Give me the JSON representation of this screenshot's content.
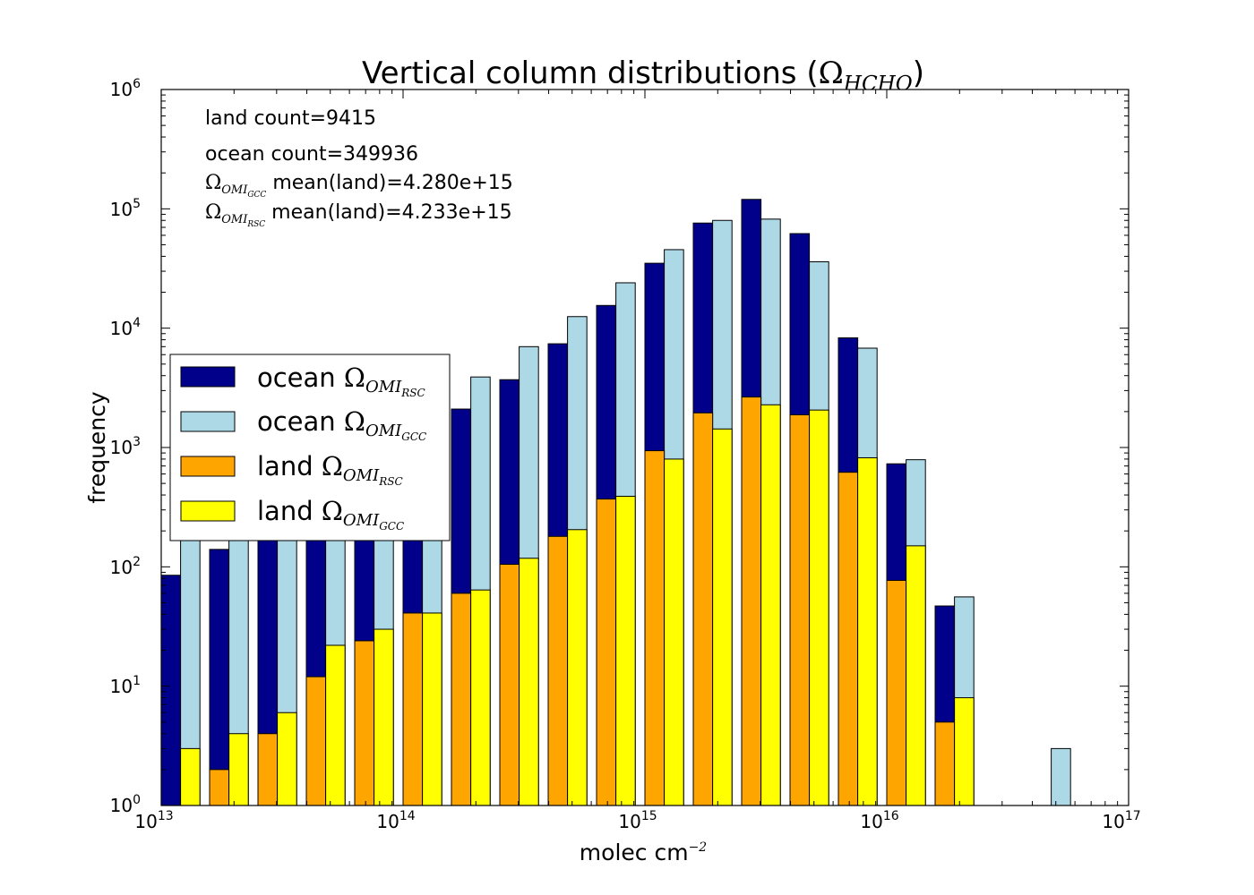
{
  "chart_data": {
    "type": "bar",
    "title": {
      "text": "Vertical column distributions (",
      "symbol": "Ω",
      "subscript": "HCHO",
      "close": ")"
    },
    "xlabel": {
      "text": "molec cm",
      "superscript": "−2"
    },
    "ylabel": "frequency",
    "xscale": "log",
    "yscale": "log",
    "xlim": [
      10000000000000.0,
      1e+17
    ],
    "ylim": [
      1,
      1000000
    ],
    "x_ticks": [
      {
        "base": "10",
        "exp": "13"
      },
      {
        "base": "10",
        "exp": "14"
      },
      {
        "base": "10",
        "exp": "15"
      },
      {
        "base": "10",
        "exp": "16"
      },
      {
        "base": "10",
        "exp": "17"
      }
    ],
    "y_ticks": [
      {
        "base": "10",
        "exp": "0"
      },
      {
        "base": "10",
        "exp": "1"
      },
      {
        "base": "10",
        "exp": "2"
      },
      {
        "base": "10",
        "exp": "3"
      },
      {
        "base": "10",
        "exp": "4"
      },
      {
        "base": "10",
        "exp": "5"
      },
      {
        "base": "10",
        "exp": "6"
      }
    ],
    "bin_edges": [
      10000000000000.0,
      15850000000000.0,
      25120000000000.0,
      39810000000000.0,
      63100000000000.0,
      100000000000000.0,
      158500000000000.0,
      251200000000000.0,
      398100000000000.0,
      631000000000000.0,
      1000000000000000.0,
      1585000000000000.0,
      2512000000000000.0,
      3981000000000000.0,
      6310000000000000.0,
      1e+16,
      1.585e+16,
      2.512e+16,
      3.981e+16,
      6.31e+16,
      1e+17
    ],
    "series": [
      {
        "name": {
          "prefix": "ocean ",
          "symbol": "Ω",
          "sub": "OMI",
          "subsub": "RSC"
        },
        "color": "#00008b",
        "group": "ocean",
        "slot": 0,
        "values": [
          85,
          140,
          190,
          170,
          190,
          470,
          2100,
          3700,
          7400,
          15500,
          35000,
          76000,
          120000,
          62000,
          8300,
          730,
          47,
          0,
          0,
          0
        ]
      },
      {
        "name": {
          "prefix": "ocean ",
          "symbol": "Ω",
          "sub": "OMI",
          "subsub": "GCC"
        },
        "color": "#add8e6",
        "group": "ocean",
        "slot": 1,
        "values": [
          400,
          460,
          800,
          680,
          830,
          2250,
          3900,
          7000,
          12500,
          24000,
          45500,
          80000,
          82000,
          36000,
          6800,
          790,
          56,
          0,
          3,
          0
        ]
      },
      {
        "name": {
          "prefix": "land ",
          "symbol": "Ω",
          "sub": "OMI",
          "subsub": "RSC"
        },
        "color": "#ffa500",
        "group": "land",
        "slot": 0,
        "values": [
          0,
          2,
          4,
          12,
          24,
          41,
          60,
          105,
          180,
          370,
          940,
          1950,
          2650,
          1880,
          620,
          77,
          5,
          0,
          0,
          0
        ]
      },
      {
        "name": {
          "prefix": "land ",
          "symbol": "Ω",
          "sub": "OMI",
          "subsub": "GCC"
        },
        "color": "#ffff00",
        "group": "land",
        "slot": 1,
        "values": [
          3,
          4,
          6,
          22,
          30,
          41,
          64,
          118,
          205,
          390,
          800,
          1430,
          2280,
          2060,
          820,
          150,
          8,
          0,
          0,
          0
        ]
      }
    ],
    "annotations": [
      {
        "text": "land count=9415"
      },
      {
        "text": "ocean count=349936"
      },
      {
        "symbol": "Ω",
        "sub": "OMI",
        "subsub": "GCC",
        "text": " mean(land)=4.280e+15"
      },
      {
        "symbol": "Ω",
        "sub": "OMI",
        "subsub": "RSC",
        "text": " mean(land)=4.233e+15"
      }
    ],
    "legend_position": "center-left",
    "grid": false
  }
}
